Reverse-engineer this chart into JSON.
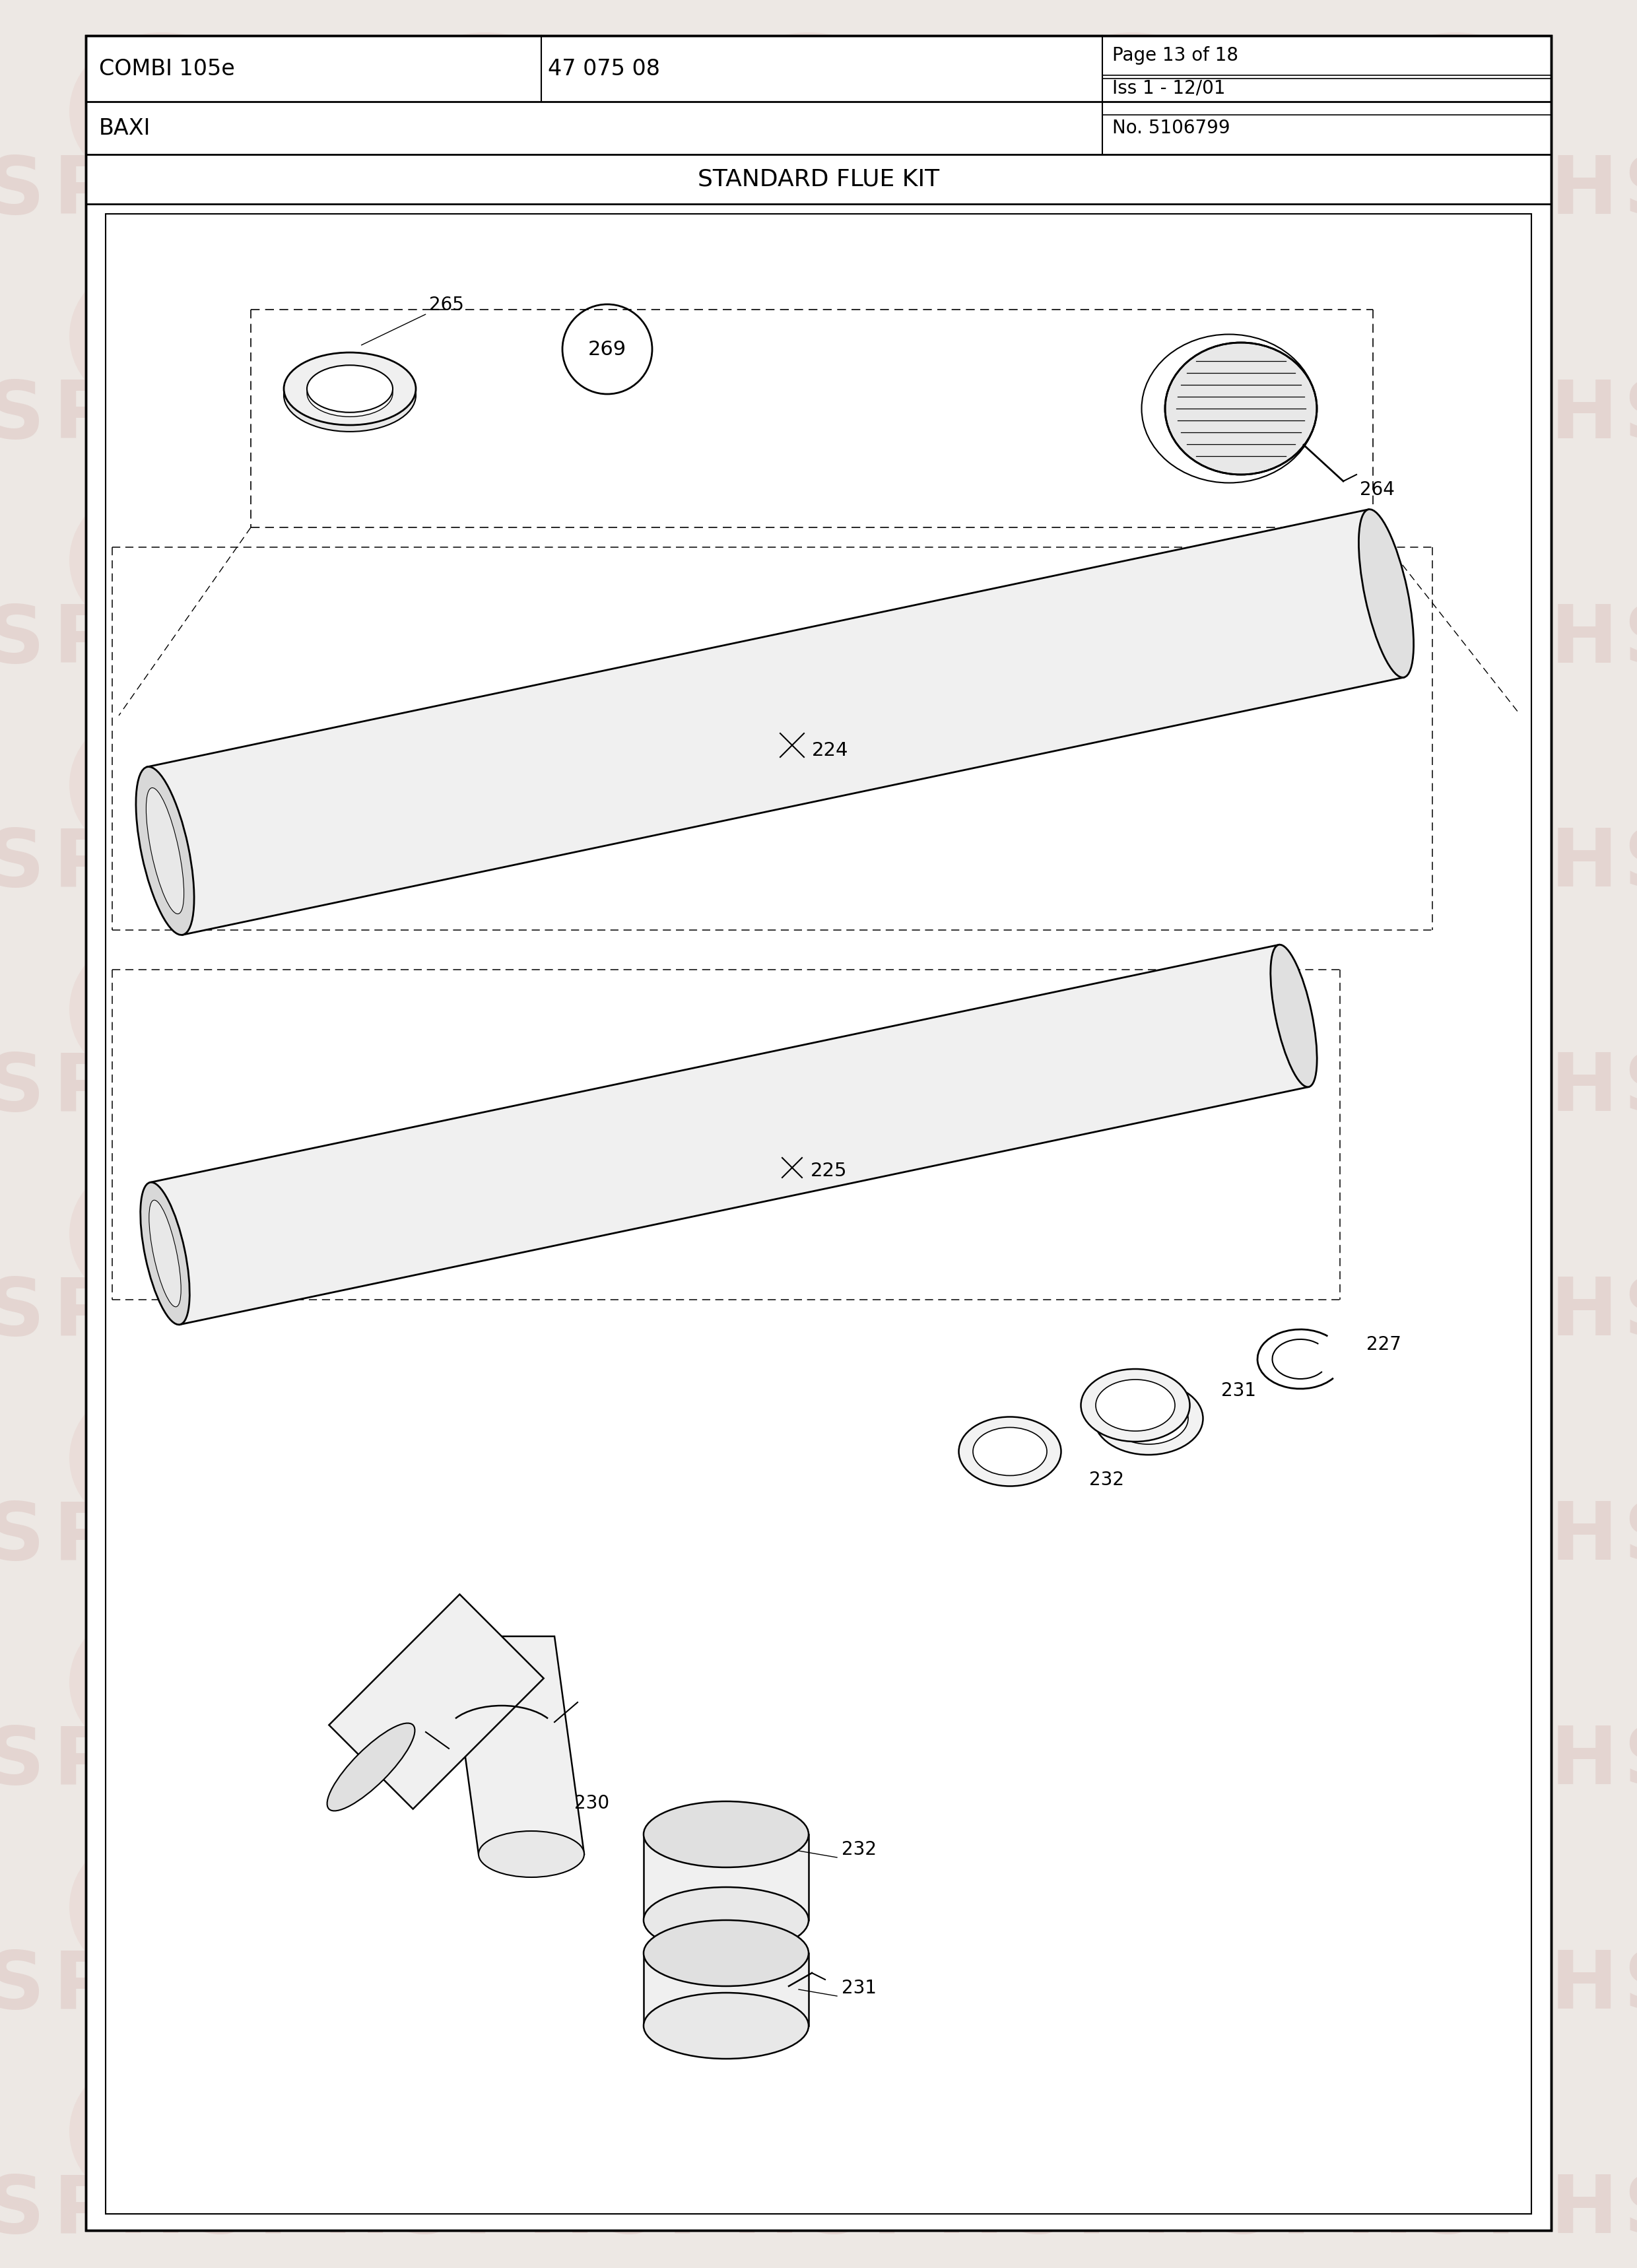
{
  "title": "STANDARD FLUE KIT",
  "header_left": "COMBI 105e",
  "header_mid": "47 075 08",
  "header_right1": "Page 13 of 18",
  "header_right2": "Iss 1 - 12/01",
  "header_right3": "No. 5106799",
  "brand": "BAXI",
  "bg_color": "#ede8e4",
  "page_bg": "#ffffff",
  "border_color": "#111111",
  "wm_circle_outer": "#e8d5d0",
  "wm_circle_inner": "#dfc8c0",
  "wm_text": "#ccb0a8",
  "wm_bg_text": "#e0ccc8"
}
